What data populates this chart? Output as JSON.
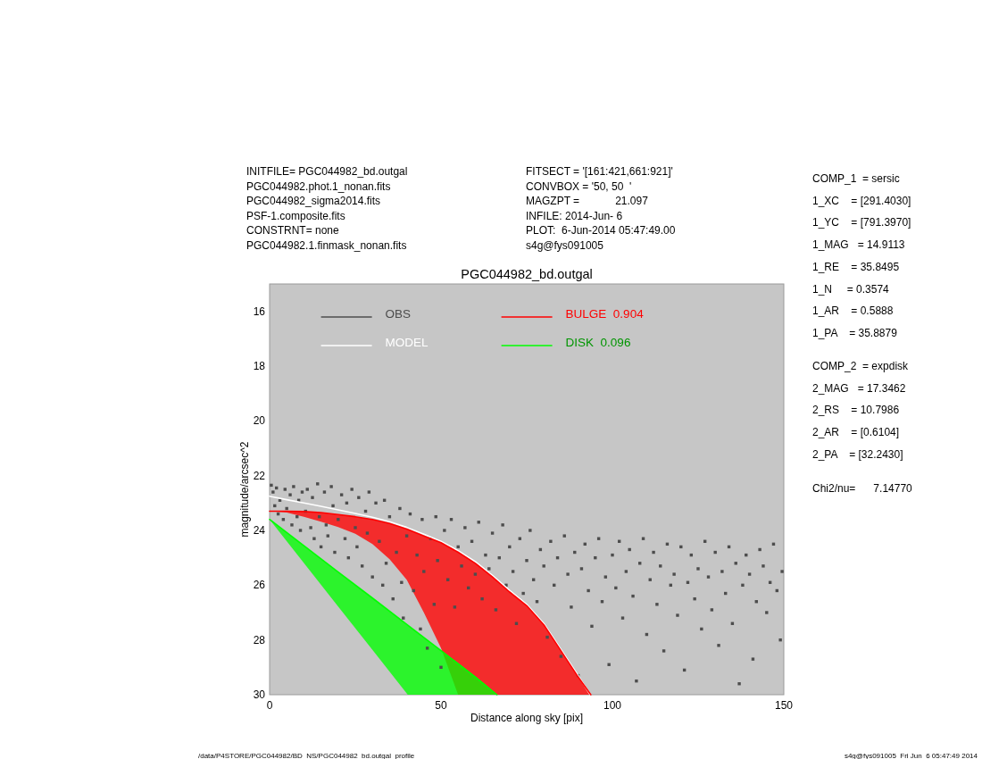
{
  "chart_data": {
    "type": "scatter",
    "title": "PGC044982_bd.outgal",
    "xlabel": "Distance along sky [pix]",
    "ylabel": "magnitude/arcsec^2",
    "xlim": [
      0,
      150
    ],
    "xticks": [
      0,
      50,
      100,
      150
    ],
    "ylim": [
      30,
      15
    ],
    "yticks": [
      16,
      18,
      20,
      22,
      24,
      26,
      28,
      30
    ],
    "legend": "top",
    "marker": "square",
    "series": [
      {
        "name": "OBS",
        "color": "#4d4d4d",
        "x": [
          0.5,
          1,
          1.5,
          2,
          2.5,
          3,
          4,
          4.5,
          5,
          6,
          6.5,
          7,
          8,
          8.5,
          9,
          9.5,
          10.5,
          11,
          12,
          12.5,
          13,
          14,
          14.5,
          15,
          16,
          16.5,
          17,
          18,
          18.5,
          19,
          20,
          21,
          22,
          22.5,
          23,
          24,
          25,
          25.5,
          26,
          27,
          28,
          28.5,
          29,
          30,
          31,
          32,
          33,
          33.5,
          34,
          35,
          36,
          37,
          38,
          38.5,
          39,
          40,
          41,
          42,
          43,
          44,
          44.5,
          45,
          46,
          47,
          48,
          48.5,
          49,
          50,
          51,
          52,
          53,
          54,
          55,
          56,
          57,
          58,
          59,
          60,
          61,
          62,
          63,
          64,
          65,
          66,
          67,
          68,
          69,
          70,
          71,
          72,
          73,
          74,
          75,
          76,
          77,
          78,
          79,
          80,
          81,
          82,
          83,
          84,
          85,
          86,
          87,
          88,
          89,
          90,
          91,
          92,
          93,
          94,
          95,
          96,
          97,
          98,
          99,
          100,
          101,
          102,
          103,
          104,
          105,
          106,
          107,
          108,
          109,
          110,
          111,
          112,
          113,
          114,
          115,
          116,
          117,
          118,
          119,
          120,
          121,
          122,
          123,
          124,
          125,
          126,
          127,
          128,
          129,
          130,
          131,
          132,
          133,
          134,
          135,
          136,
          137,
          138,
          139,
          140,
          141,
          142,
          143,
          144,
          145,
          146,
          147,
          148,
          149,
          149.5
        ],
        "values": [
          22.35,
          22.6,
          23.1,
          22.45,
          23.4,
          22.9,
          23.6,
          22.5,
          23.2,
          22.7,
          23.8,
          22.4,
          23.5,
          22.9,
          24.0,
          22.6,
          23.3,
          22.5,
          23.9,
          22.8,
          24.3,
          22.3,
          23.5,
          24.6,
          22.6,
          23.8,
          24.2,
          22.4,
          23.1,
          24.8,
          23.6,
          22.7,
          24.3,
          23.0,
          25.0,
          22.5,
          23.9,
          24.6,
          22.8,
          25.3,
          23.3,
          24.1,
          22.6,
          25.7,
          23.0,
          24.4,
          26.0,
          22.9,
          25.2,
          23.5,
          26.5,
          24.8,
          23.2,
          25.9,
          27.2,
          24.2,
          23.4,
          26.2,
          24.9,
          27.6,
          23.6,
          25.5,
          28.3,
          24.3,
          26.7,
          23.5,
          25.1,
          29.0,
          24.0,
          25.8,
          23.6,
          26.8,
          24.6,
          25.3,
          23.9,
          26.1,
          24.4,
          25.6,
          23.7,
          26.5,
          24.9,
          25.4,
          24.1,
          26.9,
          25.0,
          23.8,
          26.0,
          24.6,
          25.5,
          27.4,
          24.3,
          26.3,
          25.1,
          24.0,
          25.8,
          26.6,
          24.7,
          25.3,
          27.9,
          24.4,
          26.0,
          25.0,
          28.6,
          24.2,
          25.6,
          26.8,
          24.8,
          29.3,
          25.4,
          24.5,
          26.2,
          27.5,
          25.0,
          24.3,
          26.6,
          25.7,
          28.9,
          24.9,
          26.1,
          24.4,
          27.2,
          25.5,
          24.7,
          26.4,
          29.5,
          25.2,
          24.3,
          27.8,
          25.8,
          24.8,
          26.7,
          25.3,
          28.4,
          24.5,
          26.0,
          25.6,
          27.1,
          24.6,
          29.1,
          25.9,
          24.9,
          26.5,
          25.4,
          27.6,
          24.4,
          25.7,
          26.9,
          24.8,
          28.2,
          25.5,
          26.3,
          24.6,
          27.4,
          25.2,
          29.6,
          26.0,
          24.9,
          25.6,
          28.7,
          26.6,
          24.7,
          25.3,
          27.0,
          25.9,
          24.5,
          26.2,
          28.0,
          25.5
        ]
      },
      {
        "name": "MODEL",
        "type": "line",
        "marker": "none",
        "color": "#ffffff",
        "x": [
          0,
          5,
          10,
          15,
          20,
          25,
          30,
          35,
          40,
          45,
          50,
          55,
          60,
          65,
          70,
          75,
          80,
          85,
          90,
          93.5
        ],
        "values": [
          22.75,
          22.88,
          23.0,
          23.12,
          23.25,
          23.38,
          23.52,
          23.68,
          23.89,
          24.14,
          24.4,
          24.74,
          25.14,
          25.64,
          26.19,
          26.7,
          27.4,
          28.35,
          29.3,
          30
        ]
      },
      {
        "name": "BULGE  0.904",
        "type": "line",
        "marker": "none",
        "color": "#ff0000",
        "x": [
          0,
          5,
          10,
          15,
          20,
          25,
          30,
          35,
          40,
          45,
          50,
          55,
          60,
          65,
          70,
          75,
          80,
          85,
          90,
          93.7
        ],
        "values": [
          23.3,
          23.3,
          23.31,
          23.35,
          23.42,
          23.5,
          23.6,
          23.75,
          23.95,
          24.2,
          24.45,
          24.8,
          25.2,
          25.7,
          26.25,
          26.75,
          27.45,
          28.4,
          29.35,
          30
        ],
        "lower": [
          23.3,
          23.3,
          23.31,
          23.35,
          23.42,
          23.5,
          23.6,
          23.75,
          23.95,
          24.2,
          24.45,
          24.8,
          25.2,
          25.7,
          26.25,
          26.75,
          27.45,
          28.4,
          29.35,
          30
        ],
        "upper": [
          23.3,
          23.35,
          23.5,
          23.68,
          23.88,
          24.12,
          24.5,
          25.05,
          25.8,
          27.0,
          28.3,
          30,
          30,
          30,
          30,
          30,
          30,
          30,
          30,
          30
        ]
      },
      {
        "name": "DISK  0.096",
        "type": "line",
        "marker": "none",
        "color": "#00ff00",
        "x": [
          0,
          10,
          20,
          30,
          40.3,
          50,
          60,
          66.3
        ],
        "values": [
          23.6,
          24.56,
          25.52,
          26.47,
          27.46,
          28.39,
          29.35,
          30
        ],
        "lower": [
          23.6,
          24.56,
          25.52,
          26.47,
          27.46,
          28.39,
          29.35,
          30
        ],
        "upper": [
          23.6,
          25.19,
          26.78,
          28.36,
          30,
          30,
          30,
          30
        ]
      }
    ],
    "annotations": [
      "INITFILE= PGC044982_bd.outgal",
      "PGC044982.phot.1_nonan.fits",
      "PGC044982_sigma2014.fits",
      "PSF-1.composite.fits",
      "CONSTRNT= none",
      "PGC044982.1.finmask_nonan.fits",
      "FITSECT = '[161:421,661:921]'",
      "CONVBOX = '50, 50  '",
      "MAGZPT =            21.097",
      "INFILE: 2014-Jun- 6",
      "PLOT:  6-Jun-2014 05:47:49.00",
      "s4g@fys091005",
      "COMP_1  = sersic",
      "1_XC    = [291.4030]",
      "1_YC    = [791.3970]",
      "1_MAG   = 14.9113",
      "1_RE    = 35.8495",
      "1_N     = 0.3574",
      "1_AR    = 0.5888",
      "1_PA    = 35.8879",
      "COMP_2  = expdisk",
      "2_MAG   = 17.3462",
      "2_RS    = 10.7986",
      "2_AR    = [0.6104]",
      "2_PA    = [32.2430]",
      "Chi2/nu=      7.14770",
      "/data/P4STORE/PGC044982/BD_NS/PGC044982_bd.outgal_profile",
      "s4g@fys091005  Fri Jun  6 05:47:49 2014"
    ]
  }
}
